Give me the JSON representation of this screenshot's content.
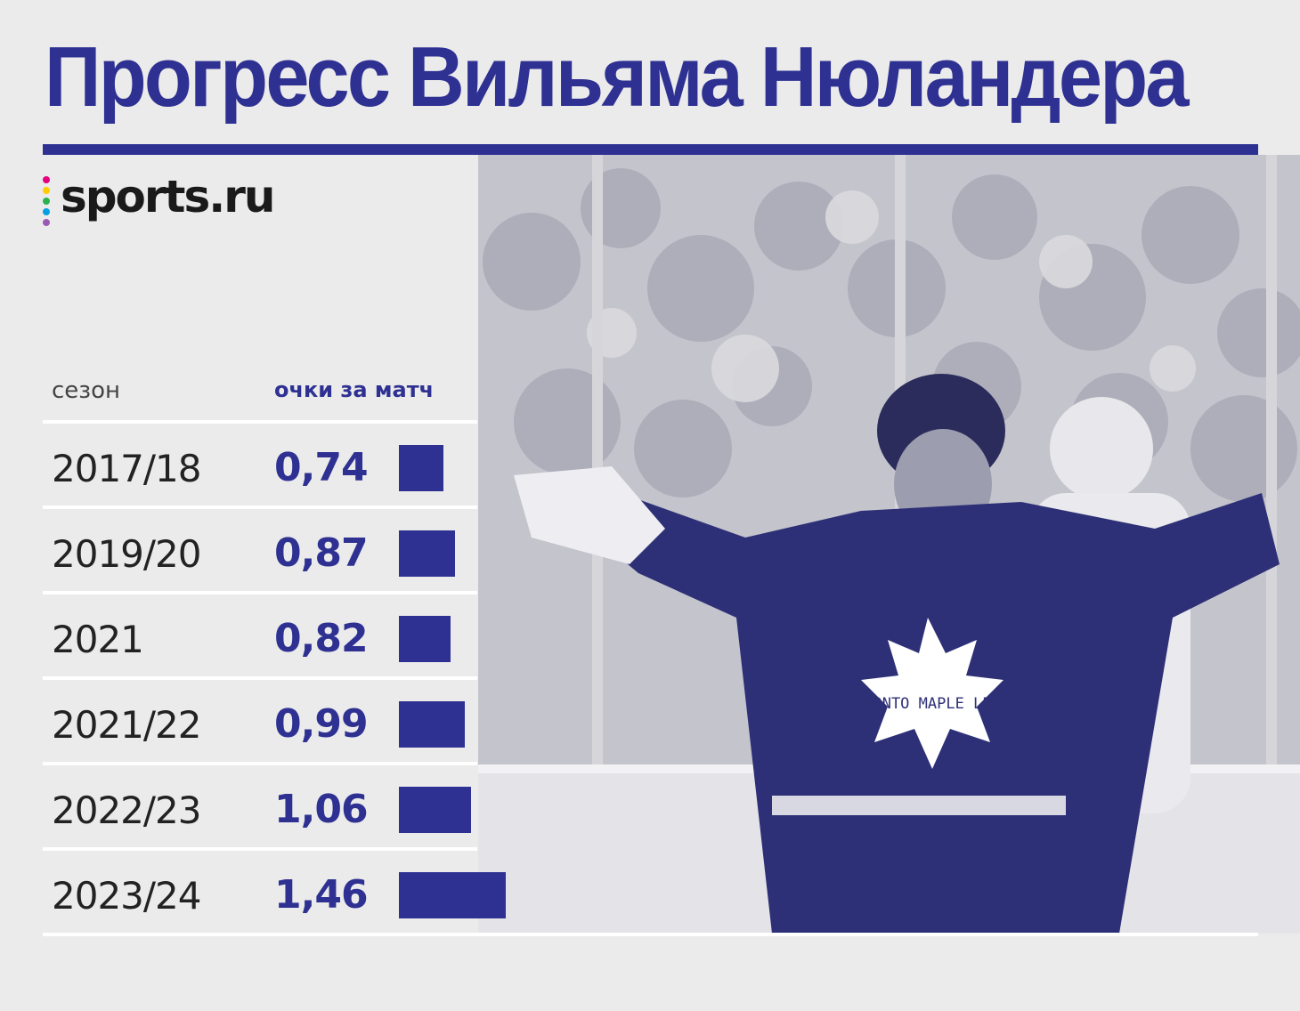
{
  "title": "Прогресс Вильяма Нюландера",
  "logo": {
    "text": "sports.ru",
    "dot_colors": [
      "#e5007d",
      "#ffcc00",
      "#2bb24c",
      "#00a0e3",
      "#9b59b6"
    ]
  },
  "colors": {
    "accent": "#2e3192",
    "background": "#ebebeb"
  },
  "photo": {
    "jersey_text": "TORONTO MAPLE LEAFS",
    "icon": "hockey-player-photo"
  },
  "chart_data": {
    "type": "bar",
    "orientation": "horizontal",
    "columns": [
      "сезон",
      "очки за матч"
    ],
    "categories": [
      "2017/18",
      "2019/20",
      "2021",
      "2021/22",
      "2022/23",
      "2023/24"
    ],
    "values": [
      0.74,
      0.87,
      0.82,
      0.99,
      1.06,
      1.46
    ],
    "value_labels": [
      "0,74",
      "0,87",
      "0,82",
      "0,99",
      "1,06",
      "1,46"
    ],
    "xlim": [
      0,
      1.46
    ]
  }
}
